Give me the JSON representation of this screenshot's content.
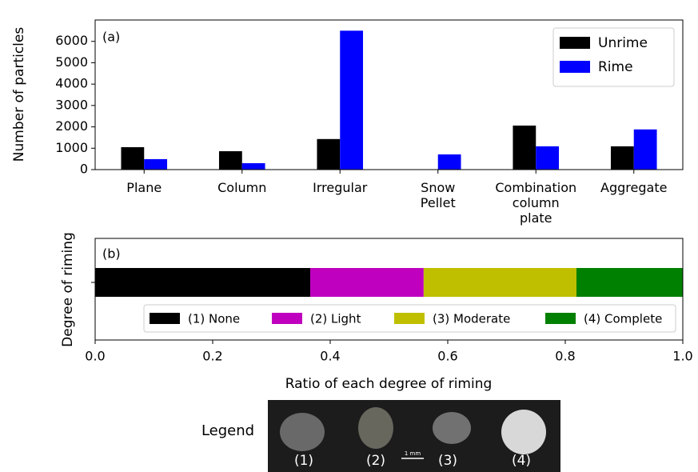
{
  "chart_data": [
    {
      "type": "bar",
      "annotation": "(a)",
      "ylabel": "Number of particles",
      "categories": [
        "Plane",
        "Column",
        "Irregular",
        "Snow\nPellet",
        "Combination\ncolumn\nplate",
        "Aggregate"
      ],
      "series": [
        {
          "name": "Unrime",
          "color": "#000000",
          "values": [
            1050,
            860,
            1430,
            10,
            2060,
            1090
          ]
        },
        {
          "name": "Rime",
          "color": "#0000ff",
          "values": [
            490,
            300,
            6500,
            710,
            1090,
            1880
          ]
        }
      ],
      "ylim": [
        0,
        7000
      ],
      "yticks": [
        0,
        1000,
        2000,
        3000,
        4000,
        5000,
        6000
      ],
      "legend": "upper right"
    },
    {
      "type": "stacked_barh",
      "annotation": "(b)",
      "ylabel": "Degree of riming",
      "xlabel": "Ratio of each degree of riming",
      "series": [
        {
          "name": "(1) None",
          "color": "#000000",
          "values": [
            0.366
          ]
        },
        {
          "name": "(2) Light",
          "color": "#bf00bf",
          "values": [
            0.193
          ]
        },
        {
          "name": "(3) Moderate",
          "color": "#bfbf00",
          "values": [
            0.26
          ]
        },
        {
          "name": "(4) Complete",
          "color": "#008000",
          "values": [
            0.181
          ]
        }
      ],
      "xlim": [
        0,
        1
      ],
      "xticks": [
        {
          "value": 0,
          "label": "0.0"
        },
        {
          "value": 0.2,
          "label": "0.2"
        },
        {
          "value": 0.4,
          "label": "0.4"
        },
        {
          "value": 0.6,
          "label": "0.6"
        },
        {
          "value": 0.8,
          "label": "0.8"
        },
        {
          "value": 1,
          "label": "1.0"
        }
      ],
      "legend": "lower right"
    }
  ],
  "photo_legend": {
    "title": "Legend",
    "labels": [
      "(1)",
      "(2)",
      "(3)",
      "(4)"
    ],
    "scale": "1 mm"
  }
}
